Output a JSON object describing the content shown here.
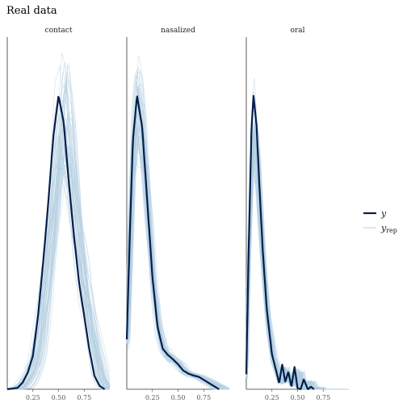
{
  "title": "Real data",
  "chart_data": {
    "type": "line",
    "title": "Real data",
    "xlabel": "",
    "ylabel": "",
    "xlim": [
      0,
      1.0
    ],
    "x_ticks": [
      "0.25",
      "0.50",
      "0.75"
    ],
    "x_tick_values": [
      0.25,
      0.5,
      0.75
    ],
    "grid": false,
    "legend_position": "right",
    "legend": [
      {
        "label": "y",
        "color": "#011f4b",
        "style": "thick"
      },
      {
        "label": "y",
        "subscript": "rep",
        "color": "#b3cde0",
        "style": "thin"
      }
    ],
    "n_rep_draws": 50,
    "panels": [
      {
        "label": "contact",
        "y_peak": 0.52,
        "y_curve": {
          "x": [
            0.0,
            0.1,
            0.15,
            0.2,
            0.25,
            0.3,
            0.35,
            0.4,
            0.45,
            0.5,
            0.55,
            0.6,
            0.65,
            0.7,
            0.75,
            0.8,
            0.85,
            0.9,
            0.95
          ],
          "density": [
            0.0,
            0.02,
            0.1,
            0.25,
            0.5,
            1.1,
            1.9,
            2.8,
            3.8,
            4.4,
            4.0,
            3.1,
            2.3,
            1.6,
            1.1,
            0.6,
            0.2,
            0.05,
            0.0
          ]
        },
        "rep_range": {
          "shift": [
            0.0,
            0.1
          ],
          "height": [
            0.75,
            1.12
          ],
          "width": [
            0.85,
            1.25
          ]
        }
      },
      {
        "label": "nasalized",
        "y_peak": 0.1,
        "y_curve": {
          "x": [
            0.0,
            0.03,
            0.06,
            0.1,
            0.15,
            0.2,
            0.25,
            0.3,
            0.35,
            0.4,
            0.45,
            0.5,
            0.55,
            0.6,
            0.65,
            0.7,
            0.75,
            0.8,
            0.85,
            0.9
          ],
          "density": [
            0.8,
            2.5,
            4.0,
            4.7,
            4.2,
            3.0,
            1.8,
            1.0,
            0.65,
            0.55,
            0.48,
            0.4,
            0.3,
            0.25,
            0.22,
            0.2,
            0.15,
            0.1,
            0.05,
            0.0
          ]
        },
        "rep_range": {
          "shift": [
            -0.02,
            0.03
          ],
          "height": [
            0.85,
            1.1
          ],
          "width": [
            0.9,
            1.15
          ]
        }
      },
      {
        "label": "oral",
        "y_peak": 0.07,
        "y_curve": {
          "x": [
            0.0,
            0.02,
            0.05,
            0.07,
            0.1,
            0.13,
            0.16,
            0.2,
            0.25,
            0.3,
            0.32,
            0.35,
            0.38,
            0.41,
            0.44,
            0.47,
            0.5,
            0.53,
            0.56,
            0.6,
            0.63,
            0.66
          ],
          "density": [
            0.3,
            2.5,
            5.2,
            5.9,
            5.3,
            4.0,
            2.8,
            1.6,
            0.7,
            0.3,
            0.12,
            0.5,
            0.15,
            0.35,
            0.05,
            0.45,
            0.02,
            0.0,
            0.2,
            0.0,
            0.05,
            0.0
          ]
        },
        "rep_range": {
          "shift": [
            -0.01,
            0.02
          ],
          "height": [
            0.78,
            1.02
          ],
          "width": [
            0.95,
            1.2
          ]
        }
      }
    ]
  }
}
